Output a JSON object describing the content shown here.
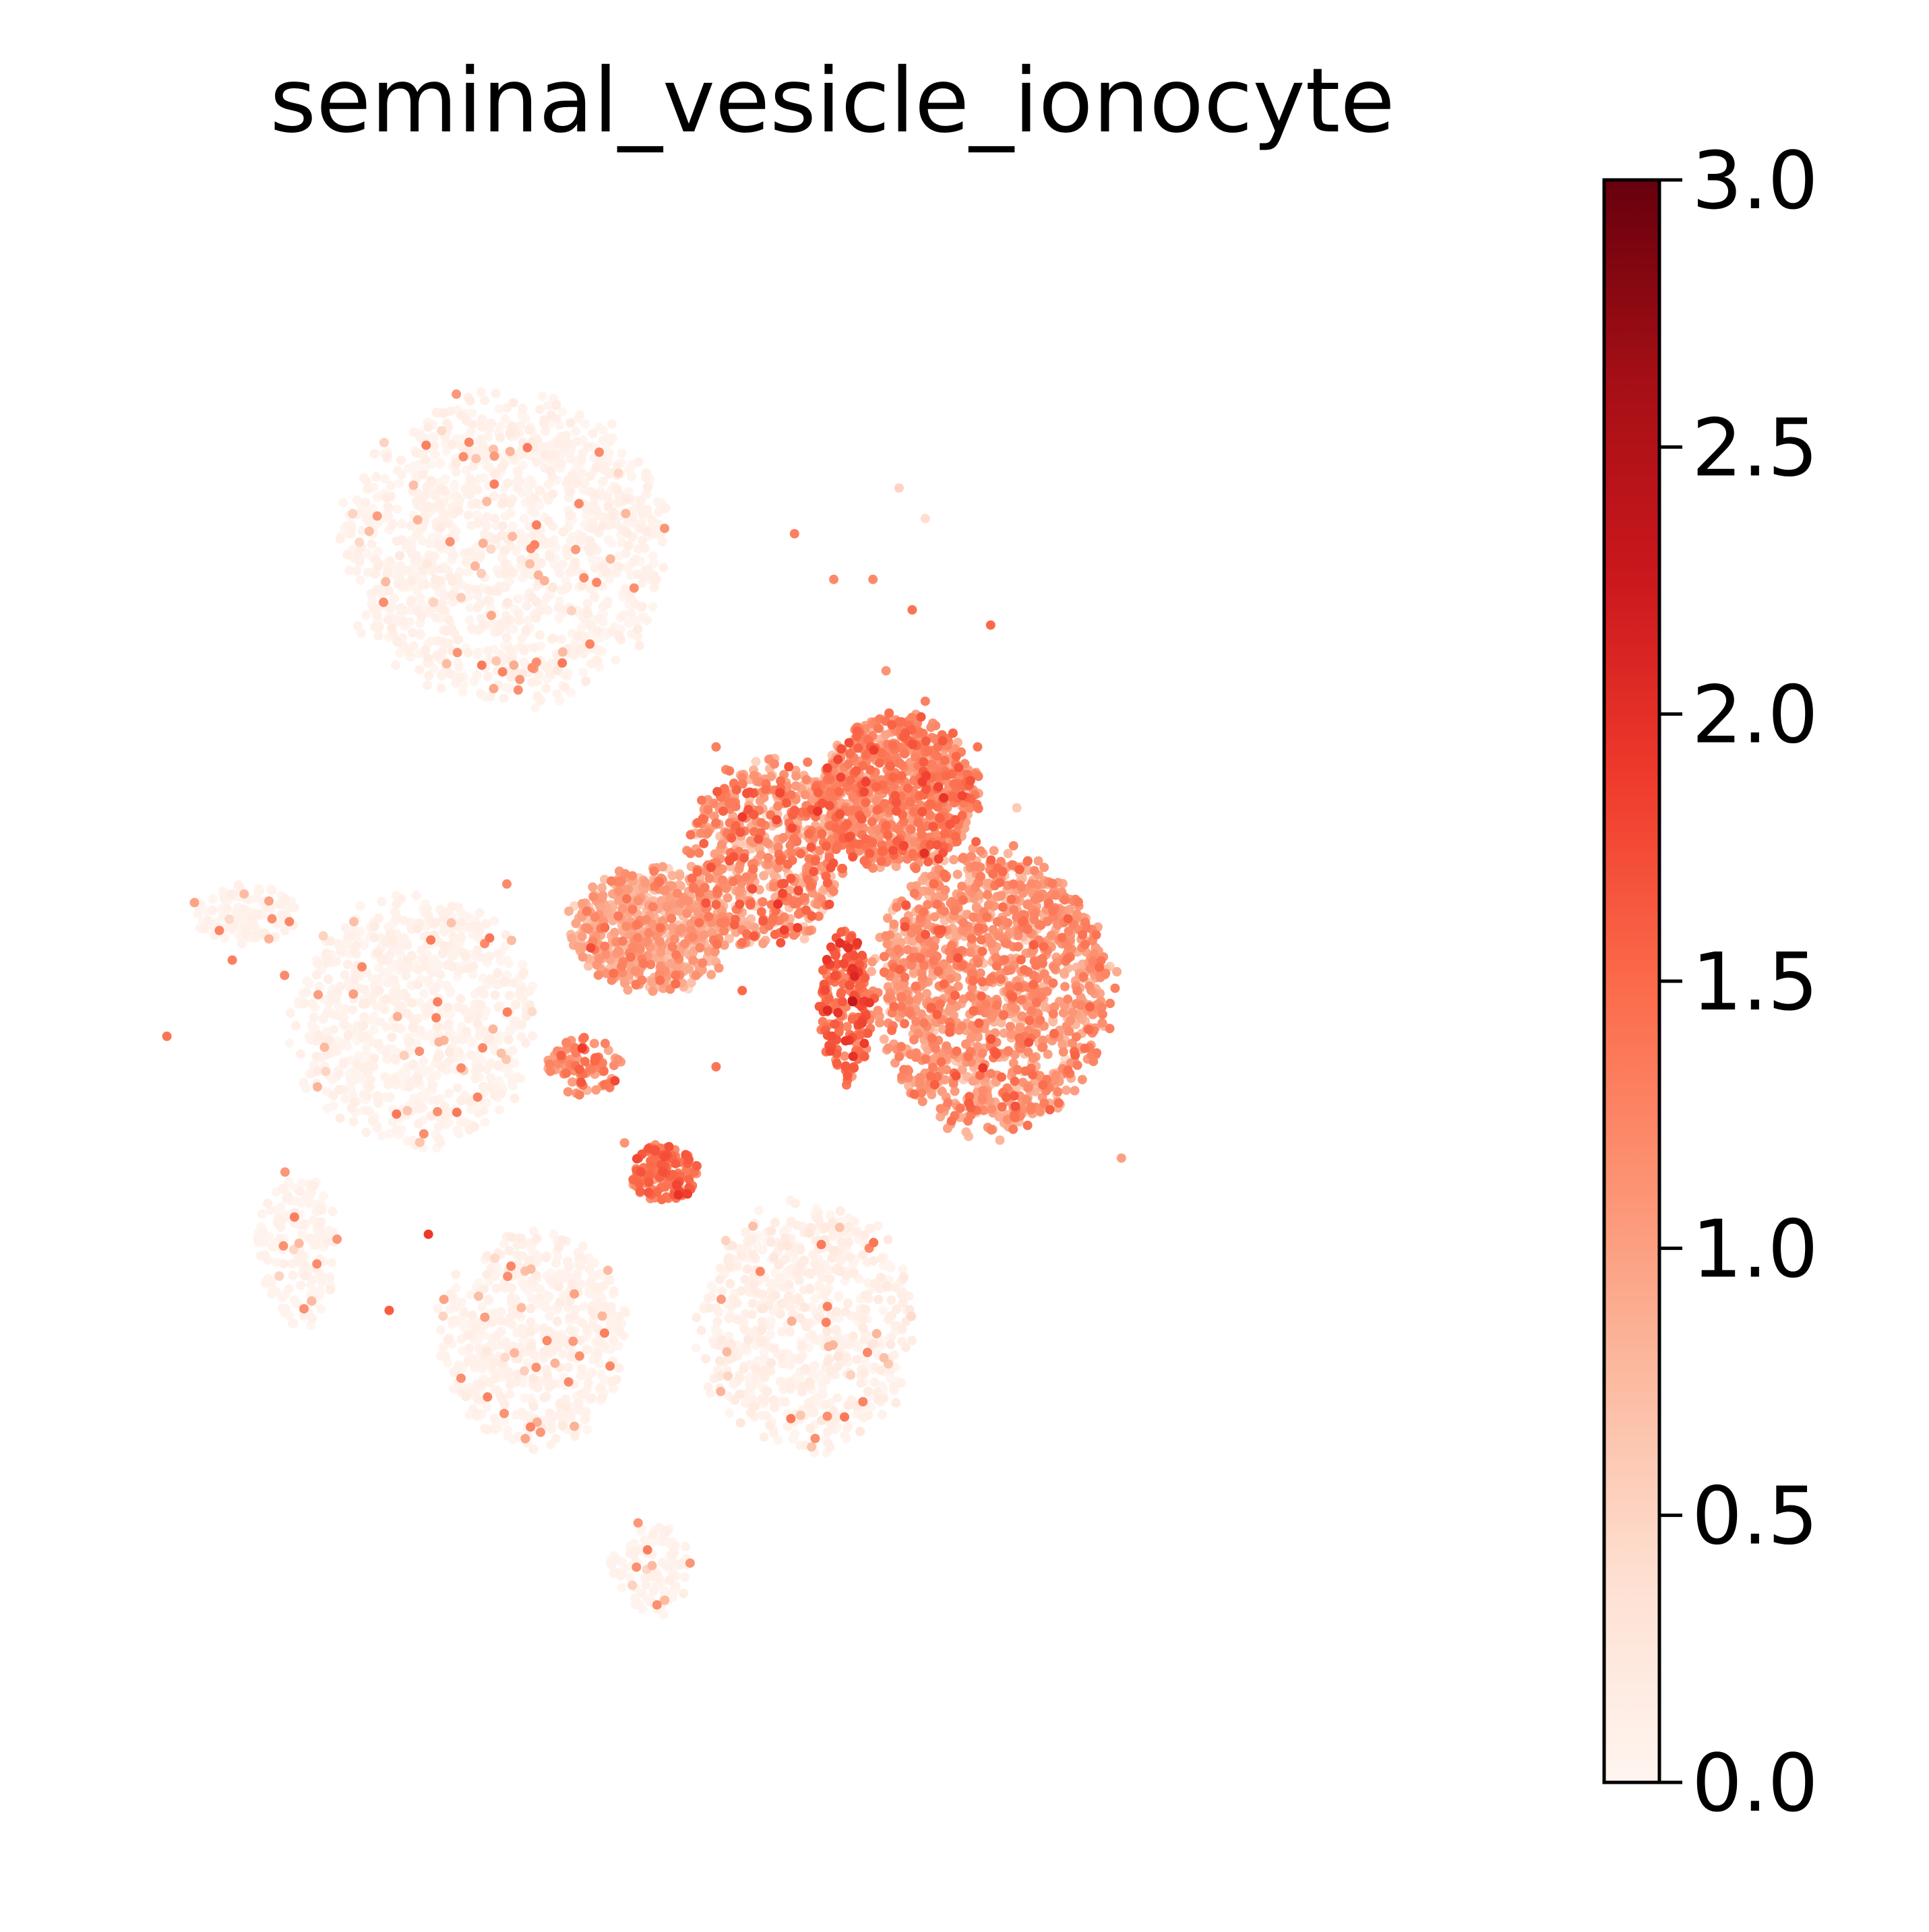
{
  "chart_data": {
    "type": "scatter",
    "title": "seminal_vesicle_ionocyte",
    "xlabel": "",
    "ylabel": "",
    "axes_visible": false,
    "grid": false,
    "colormap": "Reds",
    "colormap_stops": [
      "#fff5f0",
      "#fee0d2",
      "#fcbba1",
      "#fc9272",
      "#fb6a4a",
      "#ef3b2c",
      "#cb181d",
      "#a50f15",
      "#67000d"
    ],
    "colorbar": {
      "range": [
        0,
        3
      ],
      "ticks": [
        0.0,
        0.5,
        1.0,
        1.5,
        2.0,
        2.5,
        3.0
      ],
      "tick_labels": [
        "0.0",
        "0.5",
        "1.0",
        "1.5",
        "2.0",
        "2.5",
        "3.0"
      ],
      "placement": "right"
    },
    "xlim": [
      0,
      100
    ],
    "ylim": [
      0,
      100
    ],
    "clusters": [
      {
        "cx": 30,
        "cy": 79,
        "rx": 12,
        "ry": 10,
        "n": 1300,
        "mean": 0.05,
        "spread": 0.05
      },
      {
        "cx": 10,
        "cy": 55,
        "rx": 4,
        "ry": 2,
        "n": 120,
        "mean": 0.04,
        "spread": 0.04
      },
      {
        "cx": 23,
        "cy": 48,
        "rx": 9,
        "ry": 8,
        "n": 800,
        "mean": 0.04,
        "spread": 0.05
      },
      {
        "cx": 14,
        "cy": 33,
        "rx": 3,
        "ry": 5,
        "n": 180,
        "mean": 0.03,
        "spread": 0.04
      },
      {
        "cx": 32,
        "cy": 27,
        "rx": 7,
        "ry": 7,
        "n": 600,
        "mean": 0.05,
        "spread": 0.05
      },
      {
        "cx": 53,
        "cy": 28,
        "rx": 8,
        "ry": 8,
        "n": 700,
        "mean": 0.07,
        "spread": 0.07
      },
      {
        "cx": 41,
        "cy": 12,
        "rx": 3,
        "ry": 3,
        "n": 120,
        "mean": 0.03,
        "spread": 0.04
      },
      {
        "cx": 41,
        "cy": 54,
        "rx": 6,
        "ry": 4,
        "n": 600,
        "mean": 0.9,
        "spread": 0.22
      },
      {
        "cx": 50,
        "cy": 59,
        "rx": 6,
        "ry": 6,
        "n": 600,
        "mean": 1.1,
        "spread": 0.3
      },
      {
        "cx": 60,
        "cy": 63,
        "rx": 6,
        "ry": 5,
        "n": 800,
        "mean": 1.2,
        "spread": 0.25
      },
      {
        "cx": 67,
        "cy": 50,
        "rx": 9,
        "ry": 9,
        "n": 1400,
        "mean": 1.05,
        "spread": 0.22
      },
      {
        "cx": 56,
        "cy": 49,
        "rx": 2,
        "ry": 5,
        "n": 200,
        "mean": 1.5,
        "spread": 0.25
      },
      {
        "cx": 42,
        "cy": 38,
        "rx": 2.5,
        "ry": 1.8,
        "n": 150,
        "mean": 1.4,
        "spread": 0.2
      },
      {
        "cx": 36,
        "cy": 45,
        "rx": 3,
        "ry": 2,
        "n": 80,
        "mean": 1.2,
        "spread": 0.25
      }
    ],
    "outliers": [
      [
        52,
        80,
        1.3
      ],
      [
        55,
        77,
        1.2
      ],
      [
        58,
        77,
        1.2
      ],
      [
        61,
        75,
        1.4
      ],
      [
        67,
        74,
        1.5
      ],
      [
        66,
        66,
        1.4
      ],
      [
        62,
        69,
        1.3
      ],
      [
        48,
        64,
        1.2
      ],
      [
        46,
        66,
        1.3
      ],
      [
        49,
        63,
        1.1
      ],
      [
        4,
        47,
        1.4
      ],
      [
        9,
        52,
        1.3
      ],
      [
        13,
        51,
        1.2
      ],
      [
        24,
        34,
        1.9
      ],
      [
        21,
        29,
        1.6
      ],
      [
        77,
        39,
        1.0
      ],
      [
        59,
        71,
        1.1
      ],
      [
        60,
        83,
        0.5
      ],
      [
        62,
        81,
        0.4
      ],
      [
        69,
        62,
        0.6
      ],
      [
        67,
        55,
        0.7
      ],
      [
        51,
        57,
        1.6
      ],
      [
        53,
        65,
        1.3
      ],
      [
        48,
        50,
        1.5
      ],
      [
        30,
        57,
        1.2
      ],
      [
        46,
        45,
        1.4
      ],
      [
        39,
        40,
        1.1
      ],
      [
        35,
        44,
        1.0
      ]
    ]
  }
}
